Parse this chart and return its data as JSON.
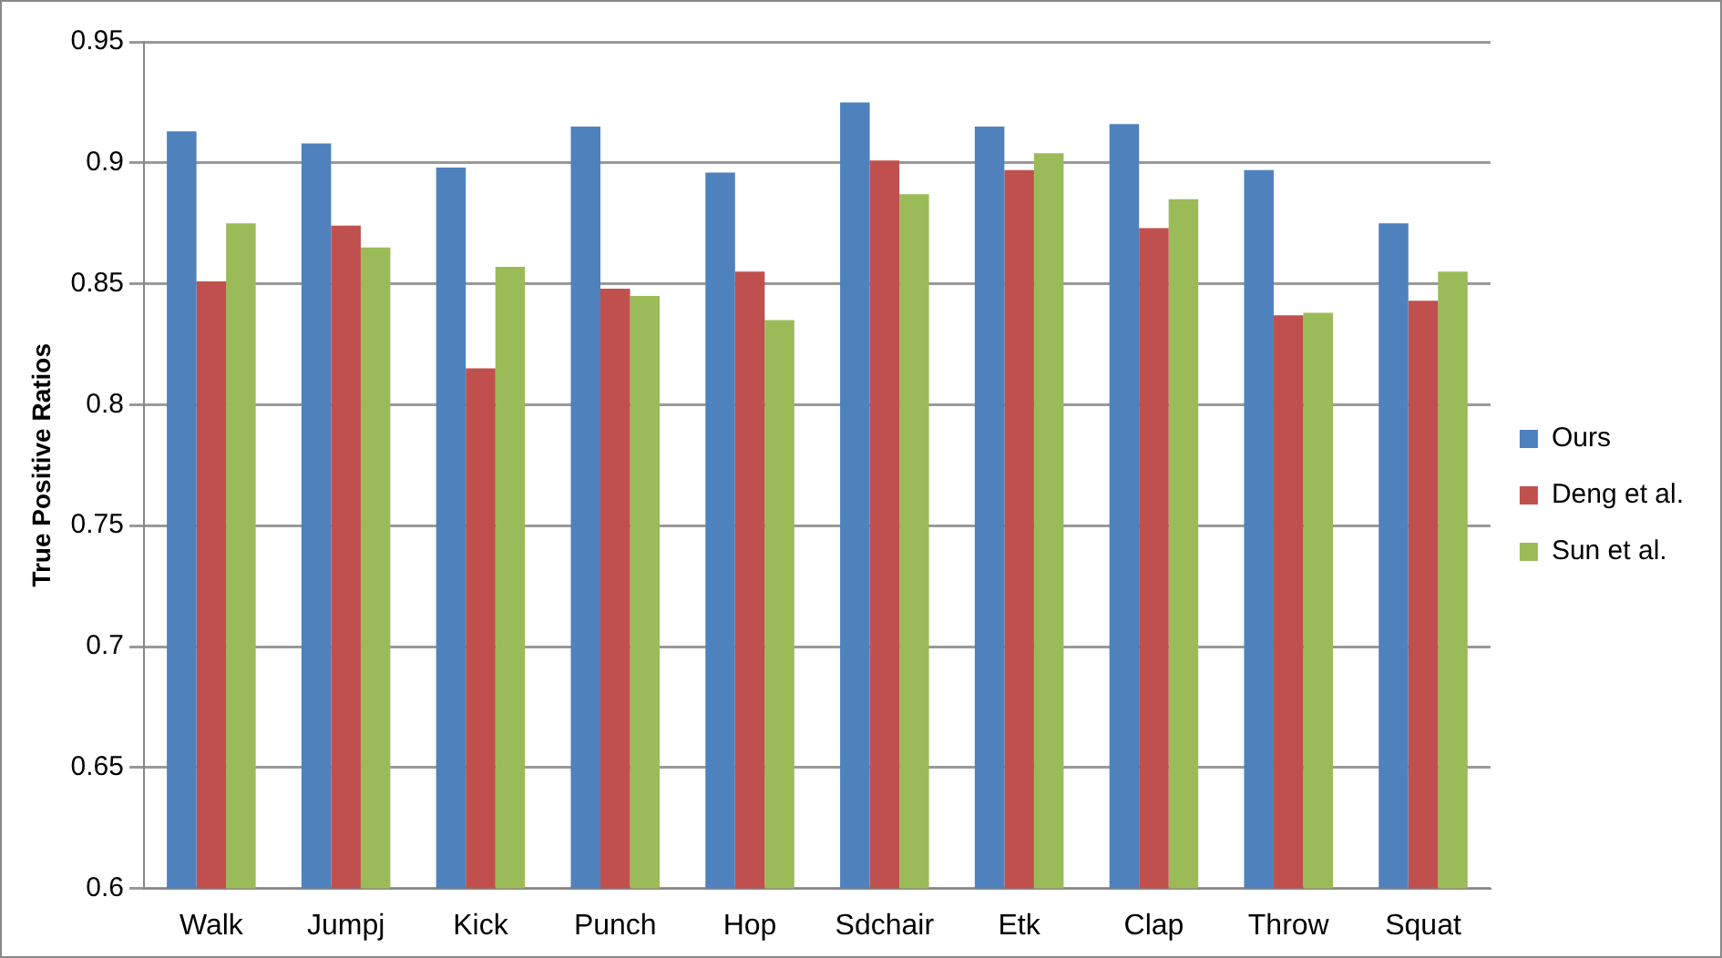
{
  "chart_data": {
    "type": "bar",
    "ylabel": "True Positive Ratios",
    "categories": [
      "Walk",
      "Jumpj",
      "Kick",
      "Punch",
      "Hop",
      "Sdchair",
      "Etk",
      "Clap",
      "Throw",
      "Squat"
    ],
    "series": [
      {
        "name": "Ours",
        "color": "#4f81bd",
        "values": [
          0.913,
          0.908,
          0.898,
          0.915,
          0.896,
          0.925,
          0.915,
          0.916,
          0.897,
          0.875
        ]
      },
      {
        "name": "Deng et al.",
        "color": "#c0504d",
        "values": [
          0.851,
          0.874,
          0.815,
          0.848,
          0.855,
          0.901,
          0.897,
          0.873,
          0.837,
          0.843
        ]
      },
      {
        "name": "Sun et al.",
        "color": "#9bbb59",
        "values": [
          0.875,
          0.865,
          0.857,
          0.845,
          0.835,
          0.887,
          0.904,
          0.885,
          0.838,
          0.855
        ]
      }
    ],
    "ylim": [
      0.6,
      0.95
    ],
    "yticks": [
      0.6,
      0.65,
      0.7,
      0.75,
      0.8,
      0.85,
      0.9,
      0.95
    ],
    "grid": "y",
    "legend": "right"
  }
}
